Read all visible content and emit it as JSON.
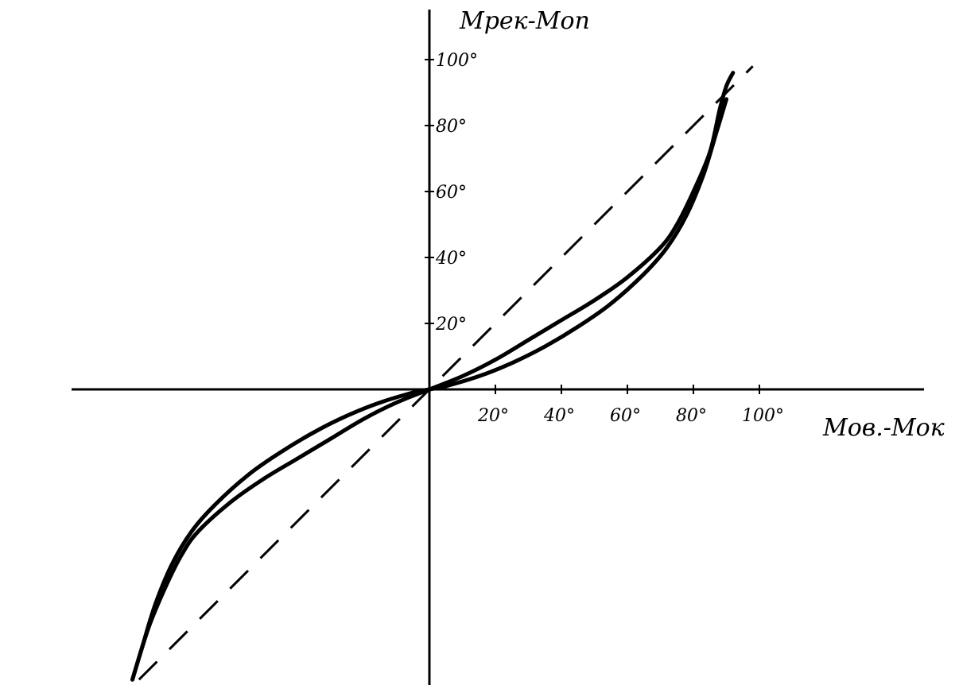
{
  "chart_data": {
    "type": "line",
    "title": "",
    "xlabel": "Mов.-Mок",
    "ylabel": "Mрек-Mоп",
    "xlim": [
      -110,
      100
    ],
    "ylim": [
      -90,
      100
    ],
    "x_ticks": [
      20,
      40,
      60,
      80,
      100
    ],
    "x_tick_labels": [
      "20°",
      "40°",
      "60°",
      "80°",
      "100°"
    ],
    "y_ticks": [
      20,
      40,
      60,
      80,
      100
    ],
    "y_tick_labels": [
      "20°",
      "40°",
      "60°",
      "80°",
      "100°"
    ],
    "grid": false,
    "series": [
      {
        "style": "dashed",
        "x": [
          -88,
          98
        ],
        "y": [
          -88,
          98
        ]
      },
      {
        "style": "solid",
        "x": [
          -90,
          -85,
          -80,
          -75,
          -70,
          -60,
          -50,
          -40,
          -30,
          -20,
          -10,
          0,
          10,
          20,
          30,
          40,
          50,
          60,
          70,
          75,
          80,
          85,
          88,
          90,
          92
        ],
        "y": [
          -88,
          -72,
          -60,
          -50,
          -43,
          -34,
          -27,
          -21,
          -15,
          -9,
          -4,
          0,
          4,
          9,
          15,
          21,
          27,
          34,
          43,
          50,
          60,
          72,
          85,
          92,
          96
        ]
      },
      {
        "style": "solid",
        "x": [
          -90,
          -87,
          -83,
          -78,
          -72,
          -65,
          -55,
          -45,
          -35,
          -25,
          -15,
          -5,
          0,
          5,
          15,
          25,
          35,
          45,
          55,
          65,
          72,
          78,
          83,
          87,
          90
        ],
        "y": [
          -88,
          -78,
          -65,
          -53,
          -43,
          -35,
          -26,
          -19,
          -13,
          -8,
          -4,
          -1,
          0,
          1,
          4,
          8,
          13,
          19,
          26,
          35,
          43,
          53,
          65,
          78,
          88
        ]
      }
    ]
  }
}
